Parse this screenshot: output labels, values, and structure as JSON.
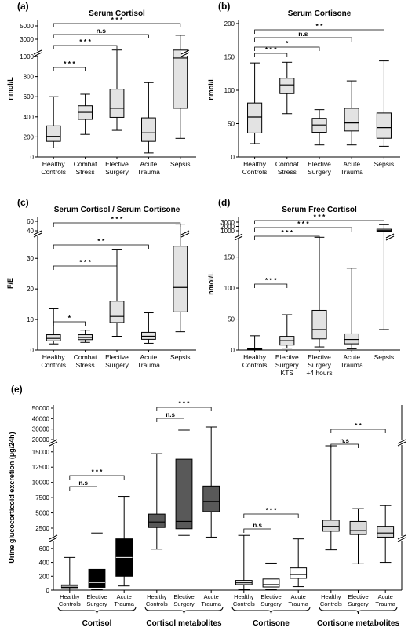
{
  "chart_data": [
    {
      "panel": "(a)",
      "type": "box",
      "title": "Serum Cortisol",
      "ylabel": "nmol/L",
      "y_break": true,
      "y_upper_ticks": [
        3000,
        5000
      ],
      "y_lower_ticks": [
        0,
        200,
        400,
        600,
        800,
        1000
      ],
      "categories": [
        "Healthy Controls",
        "Combat Stress",
        "Elective Surgery",
        "Acute Trauma",
        "Sepsis"
      ],
      "box_color": "#e3e3e3",
      "boxes": [
        {
          "min": 90,
          "q1": 155,
          "median": 205,
          "q3": 310,
          "max": 600
        },
        {
          "min": 225,
          "q1": 375,
          "median": 445,
          "q3": 510,
          "max": 625
        },
        {
          "min": 265,
          "q1": 395,
          "median": 485,
          "q3": 675,
          "max": 1040
        },
        {
          "min": 40,
          "q1": 155,
          "median": 240,
          "q3": 390,
          "max": 740
        },
        {
          "min": 185,
          "q1": 485,
          "median": 985,
          "q3": 1030,
          "max": 3600
        }
      ],
      "significance": [
        {
          "from": 0,
          "to": 1,
          "label": "* * *"
        },
        {
          "from": 0,
          "to": 2,
          "label": "* * *"
        },
        {
          "from": 0,
          "to": 3,
          "label": "n.s"
        },
        {
          "from": 0,
          "to": 4,
          "label": "* * *"
        }
      ]
    },
    {
      "panel": "(b)",
      "type": "box",
      "title": "Serum Cortisone",
      "ylabel": "nmol/L",
      "y_ticks": [
        0,
        50,
        100,
        150,
        200
      ],
      "ylim": [
        0,
        200
      ],
      "categories": [
        "Healthy Controls",
        "Combat Stress",
        "Elective Surgery",
        "Acute Trauma",
        "Sepsis"
      ],
      "box_color": "#e3e3e3",
      "boxes": [
        {
          "min": 20,
          "q1": 36,
          "median": 60,
          "q3": 81,
          "max": 141
        },
        {
          "min": 65,
          "q1": 95,
          "median": 108,
          "q3": 118,
          "max": 142
        },
        {
          "min": 18,
          "q1": 37,
          "median": 48,
          "q3": 58,
          "max": 71
        },
        {
          "min": 18,
          "q1": 39,
          "median": 51,
          "q3": 73,
          "max": 114
        },
        {
          "min": 16,
          "q1": 28,
          "median": 44,
          "q3": 66,
          "max": 144
        }
      ],
      "significance": [
        {
          "from": 0,
          "to": 1,
          "label": "* * *"
        },
        {
          "from": 0,
          "to": 2,
          "label": "*"
        },
        {
          "from": 0,
          "to": 3,
          "label": "n.s"
        },
        {
          "from": 0,
          "to": 4,
          "label": "* *"
        }
      ]
    },
    {
      "panel": "(c)",
      "type": "box",
      "title": "Serum Cortisol / Serum Cortisone",
      "ylabel": "F/E",
      "y_break": true,
      "y_upper_ticks": [
        40,
        60
      ],
      "y_lower_ticks": [
        0,
        10,
        20,
        30
      ],
      "categories": [
        "Healthy Controls",
        "Combat Stress",
        "Elective Surgery",
        "Acute Trauma",
        "Sepsis"
      ],
      "box_color": "#e3e3e3",
      "boxes": [
        {
          "min": 2,
          "q1": 3,
          "median": 3.8,
          "q3": 5,
          "max": 13.5
        },
        {
          "min": 2.5,
          "q1": 3.4,
          "median": 4.1,
          "q3": 5,
          "max": 6.5
        },
        {
          "min": 4.5,
          "q1": 9,
          "median": 11,
          "q3": 16,
          "max": 33
        },
        {
          "min": 2.2,
          "q1": 3.5,
          "median": 4.5,
          "q3": 5.8,
          "max": 12.2
        },
        {
          "min": 6,
          "q1": 12.5,
          "median": 20.5,
          "q3": 34,
          "max": 54
        }
      ],
      "significance": [
        {
          "from": 0,
          "to": 1,
          "label": "*"
        },
        {
          "from": 0,
          "to": 2,
          "label": "* * *"
        },
        {
          "from": 0,
          "to": 3,
          "label": "* *"
        },
        {
          "from": 0,
          "to": 4,
          "label": "* * *"
        }
      ]
    },
    {
      "panel": "(d)",
      "type": "box",
      "title": "Serum  Free Cortisol",
      "ylabel": "nmol/L",
      "y_break": true,
      "y_upper_ticks": [
        1000,
        2000,
        3000
      ],
      "y_lower_ticks": [
        0,
        50,
        100,
        150
      ],
      "categories": [
        "Healthy Controls",
        "Elective Surgery KTS",
        "Elective Surgery +4 hours",
        "Acute Trauma",
        "Sepsis"
      ],
      "box_color": "#e3e3e3",
      "boxes": [
        {
          "min": 1,
          "q1": 1.5,
          "median": 2,
          "q3": 2.5,
          "max": 23
        },
        {
          "min": 3,
          "q1": 8,
          "median": 15,
          "q3": 22,
          "max": 57
        },
        {
          "min": 5,
          "q1": 18,
          "median": 33,
          "q3": 64,
          "max": 182
        },
        {
          "min": 2,
          "q1": 10,
          "median": 17,
          "q3": 26,
          "max": 132
        },
        {
          "min": 33,
          "q1": 750,
          "median": 1050,
          "q3": 1350,
          "max": 2400
        }
      ],
      "significance": [
        {
          "from": 0,
          "to": 1,
          "label": "* * *"
        },
        {
          "from": 0,
          "to": 2,
          "label": "* * *"
        },
        {
          "from": 0,
          "to": 3,
          "label": "* * *"
        },
        {
          "from": 0,
          "to": 4,
          "label": "* * *"
        }
      ]
    },
    {
      "panel": "(e)",
      "type": "box",
      "ylabel": "Urine glucocorticoid excretion (µg/24h)",
      "y_break": true,
      "y_segments": {
        "top_ticks": [
          20000,
          30000,
          40000,
          50000
        ],
        "middle_ticks": [
          2500,
          5000,
          7500,
          10000,
          12500,
          15000
        ],
        "bottom_ticks": [
          0,
          200,
          400,
          600
        ]
      },
      "groups": [
        {
          "name": "Cortisol",
          "color": "#000000",
          "categories": [
            "Healthy Controls",
            "Elective Surgery",
            "Acute Trauma"
          ],
          "boxes": [
            {
              "min": 0,
              "q1": 35,
              "median": 55,
              "q3": 75,
              "max": 470
            },
            {
              "min": 10,
              "q1": 40,
              "median": 110,
              "q3": 300,
              "max": 1700
            },
            {
              "min": 60,
              "q1": 200,
              "median": 470,
              "q3": 1000,
              "max": 7700
            }
          ],
          "significance": [
            {
              "from": 0,
              "to": 1,
              "label": "n.s"
            },
            {
              "from": 0,
              "to": 2,
              "label": "* * *"
            }
          ]
        },
        {
          "name": "Cortisol metabolites",
          "color": "#595959",
          "categories": [
            "Healthy Controls",
            "Elective Surgery",
            "Acute Trauma"
          ],
          "boxes": [
            {
              "min": 590,
              "q1": 2600,
              "median": 3500,
              "q3": 4800,
              "max": 14700
            },
            {
              "min": 1400,
              "q1": 2400,
              "median": 3600,
              "q3": 13800,
              "max": 29000
            },
            {
              "min": 1200,
              "q1": 5200,
              "median": 6900,
              "q3": 9400,
              "max": 32000
            }
          ],
          "significance": [
            {
              "from": 0,
              "to": 1,
              "label": "n.s"
            },
            {
              "from": 0,
              "to": 2,
              "label": "* * *"
            }
          ]
        },
        {
          "name": "Cortisone",
          "color": "#ffffff",
          "categories": [
            "Healthy Controls",
            "Elective Surgery",
            "Acute Trauma"
          ],
          "boxes": [
            {
              "min": 10,
              "q1": 80,
              "median": 105,
              "q3": 140,
              "max": 1400
            },
            {
              "min": 10,
              "q1": 45,
              "median": 80,
              "q3": 160,
              "max": 390
            },
            {
              "min": 50,
              "q1": 170,
              "median": 225,
              "q3": 320,
              "max": 1000
            }
          ],
          "significance": [
            {
              "from": 0,
              "to": 1,
              "label": "n.s"
            },
            {
              "from": 0,
              "to": 2,
              "label": "* * *"
            }
          ]
        },
        {
          "name": "Cortisone metabolites",
          "color": "#d9d9d9",
          "categories": [
            "Healthy Controls",
            "Elective Surgery",
            "Acute Trauma"
          ],
          "boxes": [
            {
              "min": 580,
              "q1": 2000,
              "median": 2800,
              "q3": 3800,
              "max": 16000
            },
            {
              "min": 380,
              "q1": 1500,
              "median": 2100,
              "q3": 3600,
              "max": 5700
            },
            {
              "min": 400,
              "q1": 1200,
              "median": 1700,
              "q3": 2800,
              "max": 6200
            }
          ],
          "significance": [
            {
              "from": 0,
              "to": 1,
              "label": "n.s"
            },
            {
              "from": 0,
              "to": 2,
              "label": "* *"
            }
          ]
        }
      ]
    }
  ]
}
